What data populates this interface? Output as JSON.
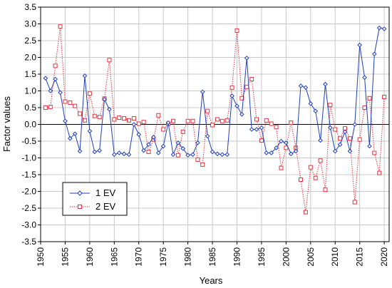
{
  "chart_data": {
    "type": "line",
    "xlabel": "Years",
    "ylabel": "Factor values",
    "xlim": [
      1950,
      2021
    ],
    "ylim": [
      -3.5,
      3.5
    ],
    "x_ticks": [
      1950,
      1955,
      1960,
      1965,
      1970,
      1975,
      1980,
      1985,
      1990,
      1995,
      2000,
      2005,
      2010,
      2015,
      2020
    ],
    "y_ticks": [
      -3.5,
      -3.0,
      -2.5,
      -2.0,
      -1.5,
      -1.0,
      -0.5,
      0.0,
      0.5,
      1.0,
      1.5,
      2.0,
      2.5,
      3.0,
      3.5
    ],
    "y_tick_labels": [
      "-3.5",
      "-3.0",
      "-2.5",
      "-2.0",
      "-1.5",
      "-1.0",
      "-0.5",
      "0.0",
      "0.5",
      "1.0",
      "1.5",
      "2.0",
      "2.5",
      "3.0",
      "3.5"
    ],
    "grid": true,
    "zero_line": true,
    "legend_position": "bottom-left",
    "series": [
      {
        "name": "1 EV",
        "color": "#1f3fbf",
        "line_style": "solid",
        "marker": "diamond",
        "x": [
          1951,
          1952,
          1953,
          1954,
          1955,
          1956,
          1957,
          1958,
          1959,
          1960,
          1961,
          1962,
          1963,
          1964,
          1965,
          1966,
          1967,
          1968,
          1969,
          1970,
          1971,
          1972,
          1973,
          1974,
          1975,
          1976,
          1977,
          1978,
          1979,
          1980,
          1981,
          1982,
          1983,
          1984,
          1985,
          1986,
          1987,
          1988,
          1989,
          1990,
          1991,
          1992,
          1993,
          1994,
          1995,
          1996,
          1997,
          1998,
          1999,
          2000,
          2001,
          2002,
          2003,
          2004,
          2005,
          2006,
          2007,
          2008,
          2009,
          2010,
          2011,
          2012,
          2013,
          2014,
          2015,
          2016,
          2017,
          2018,
          2019,
          2020
        ],
        "values": [
          1.38,
          1.0,
          1.35,
          0.95,
          0.1,
          -0.42,
          -0.28,
          -0.8,
          1.45,
          -0.2,
          -0.82,
          -0.78,
          0.75,
          0.45,
          -0.9,
          -0.85,
          -0.88,
          -0.9,
          0.0,
          -0.3,
          -0.78,
          -0.6,
          -0.38,
          -0.85,
          -0.65,
          0.05,
          -0.9,
          -0.55,
          -0.72,
          -0.92,
          -0.9,
          -0.55,
          0.97,
          -0.35,
          -0.82,
          -0.88,
          -0.9,
          -0.9,
          0.85,
          0.55,
          0.3,
          1.98,
          -0.15,
          -0.15,
          -0.1,
          -0.85,
          -0.85,
          -0.7,
          -0.5,
          -0.55,
          -0.88,
          -0.8,
          1.15,
          1.1,
          0.62,
          0.4,
          -0.48,
          1.2,
          -0.1,
          -0.8,
          -0.6,
          -0.22,
          -0.8,
          0.0,
          2.37,
          1.4,
          -0.65,
          2.1,
          2.88,
          2.85
        ]
      },
      {
        "name": "2 EV",
        "color": "#e8323c",
        "line_style": "dotted",
        "marker": "square",
        "x": [
          1951,
          1952,
          1953,
          1954,
          1955,
          1956,
          1957,
          1958,
          1959,
          1960,
          1961,
          1962,
          1963,
          1964,
          1965,
          1966,
          1967,
          1968,
          1969,
          1970,
          1971,
          1972,
          1973,
          1974,
          1975,
          1976,
          1977,
          1978,
          1979,
          1980,
          1981,
          1982,
          1983,
          1984,
          1985,
          1986,
          1987,
          1988,
          1989,
          1990,
          1991,
          1992,
          1993,
          1994,
          1995,
          1996,
          1997,
          1998,
          1999,
          2000,
          2001,
          2002,
          2003,
          2004,
          2005,
          2006,
          2007,
          2008,
          2009,
          2010,
          2011,
          2012,
          2013,
          2014,
          2015,
          2016,
          2017,
          2018,
          2019,
          2020
        ],
        "values": [
          0.5,
          0.52,
          1.75,
          2.92,
          0.68,
          0.65,
          0.55,
          0.32,
          0.12,
          0.92,
          0.25,
          0.22,
          0.77,
          1.92,
          0.15,
          0.2,
          0.18,
          0.12,
          0.18,
          0.02,
          0.07,
          -0.82,
          -0.45,
          0.27,
          -0.15,
          0.02,
          0.1,
          -0.92,
          -0.22,
          0.1,
          0.1,
          -1.05,
          -1.2,
          0.4,
          -0.02,
          0.15,
          0.1,
          0.12,
          1.1,
          2.8,
          0.78,
          1.12,
          1.35,
          0.15,
          -0.48,
          0.12,
          0.02,
          -0.08,
          -1.3,
          -0.7,
          0.05,
          -0.7,
          -1.65,
          -2.62,
          -1.28,
          -1.6,
          -1.08,
          -1.95,
          0.58,
          -0.15,
          -0.42,
          -0.12,
          -0.42,
          -2.32,
          -0.45,
          0.5,
          0.78,
          -0.85,
          -1.45,
          0.82
        ]
      }
    ]
  }
}
